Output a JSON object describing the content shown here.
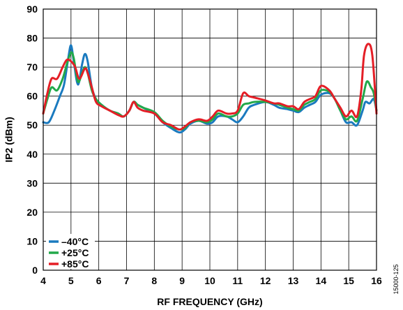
{
  "chart_data": {
    "type": "line",
    "xlabel": "RF FREQUENCY (GHz)",
    "ylabel": "IP2 (dBm)",
    "xlim": [
      4,
      16
    ],
    "ylim": [
      0,
      90
    ],
    "xticks": [
      4,
      5,
      6,
      7,
      8,
      9,
      10,
      11,
      12,
      13,
      14,
      15,
      16
    ],
    "yticks": [
      0,
      10,
      20,
      30,
      40,
      50,
      60,
      70,
      80,
      90
    ],
    "grid": true,
    "legend_position": "bottom-left",
    "figure_id": "15000-125",
    "series": [
      {
        "name": "–40°C",
        "color": "#1a7abf",
        "points": [
          [
            4.0,
            51
          ],
          [
            4.2,
            51
          ],
          [
            4.4,
            55
          ],
          [
            4.6,
            60
          ],
          [
            4.75,
            64
          ],
          [
            4.9,
            73
          ],
          [
            5.0,
            77.5
          ],
          [
            5.1,
            72
          ],
          [
            5.25,
            64
          ],
          [
            5.4,
            71
          ],
          [
            5.5,
            74.5
          ],
          [
            5.6,
            72
          ],
          [
            5.75,
            63
          ],
          [
            5.9,
            59
          ],
          [
            6.1,
            57
          ],
          [
            6.4,
            55
          ],
          [
            6.7,
            54
          ],
          [
            6.9,
            53
          ],
          [
            7.1,
            55
          ],
          [
            7.25,
            58
          ],
          [
            7.4,
            57
          ],
          [
            7.6,
            56
          ],
          [
            8.0,
            54
          ],
          [
            8.3,
            51
          ],
          [
            8.6,
            49
          ],
          [
            8.9,
            47.5
          ],
          [
            9.1,
            48.5
          ],
          [
            9.3,
            50.5
          ],
          [
            9.6,
            51.5
          ],
          [
            9.9,
            50.5
          ],
          [
            10.1,
            51
          ],
          [
            10.3,
            53
          ],
          [
            10.6,
            53
          ],
          [
            10.8,
            52
          ],
          [
            11.0,
            51
          ],
          [
            11.2,
            53
          ],
          [
            11.4,
            56
          ],
          [
            11.6,
            57
          ],
          [
            12.0,
            58
          ],
          [
            12.3,
            57
          ],
          [
            12.5,
            56
          ],
          [
            12.8,
            55.5
          ],
          [
            13.0,
            55
          ],
          [
            13.2,
            54.5
          ],
          [
            13.4,
            56
          ],
          [
            13.6,
            57
          ],
          [
            13.8,
            58
          ],
          [
            14.0,
            60.5
          ],
          [
            14.3,
            61
          ],
          [
            14.5,
            59
          ],
          [
            14.7,
            55
          ],
          [
            14.9,
            51
          ],
          [
            15.1,
            51
          ],
          [
            15.3,
            50
          ],
          [
            15.5,
            55
          ],
          [
            15.6,
            58
          ],
          [
            15.75,
            57.5
          ],
          [
            15.9,
            59
          ],
          [
            16.0,
            55
          ]
        ]
      },
      {
        "name": "+25°C",
        "color": "#22a84a",
        "points": [
          [
            4.0,
            54
          ],
          [
            4.15,
            59
          ],
          [
            4.3,
            63
          ],
          [
            4.5,
            62
          ],
          [
            4.7,
            66
          ],
          [
            4.85,
            71
          ],
          [
            5.0,
            75
          ],
          [
            5.1,
            73
          ],
          [
            5.25,
            65
          ],
          [
            5.4,
            68
          ],
          [
            5.5,
            70
          ],
          [
            5.6,
            68
          ],
          [
            5.75,
            62
          ],
          [
            5.9,
            59
          ],
          [
            6.1,
            57
          ],
          [
            6.4,
            55
          ],
          [
            6.7,
            54
          ],
          [
            6.9,
            53
          ],
          [
            7.1,
            55
          ],
          [
            7.25,
            58
          ],
          [
            7.4,
            57
          ],
          [
            7.6,
            56
          ],
          [
            8.0,
            54.5
          ],
          [
            8.3,
            51.5
          ],
          [
            8.6,
            49.5
          ],
          [
            8.9,
            48.5
          ],
          [
            9.1,
            49
          ],
          [
            9.3,
            51
          ],
          [
            9.6,
            51.5
          ],
          [
            9.9,
            51
          ],
          [
            10.1,
            52
          ],
          [
            10.3,
            54
          ],
          [
            10.6,
            53
          ],
          [
            10.8,
            53
          ],
          [
            11.0,
            54
          ],
          [
            11.2,
            57
          ],
          [
            11.4,
            57.5
          ],
          [
            11.6,
            58
          ],
          [
            12.0,
            58
          ],
          [
            12.3,
            57.5
          ],
          [
            12.5,
            57
          ],
          [
            12.8,
            56
          ],
          [
            13.0,
            55.5
          ],
          [
            13.2,
            55
          ],
          [
            13.4,
            57
          ],
          [
            13.6,
            58
          ],
          [
            13.8,
            59
          ],
          [
            14.0,
            62
          ],
          [
            14.3,
            61.5
          ],
          [
            14.5,
            59
          ],
          [
            14.7,
            55
          ],
          [
            14.9,
            52
          ],
          [
            15.1,
            53
          ],
          [
            15.3,
            51.5
          ],
          [
            15.5,
            59
          ],
          [
            15.65,
            65
          ],
          [
            15.8,
            63
          ],
          [
            15.9,
            61
          ],
          [
            16.0,
            55
          ]
        ]
      },
      {
        "name": "+85°C",
        "color": "#e41e26",
        "points": [
          [
            4.0,
            54
          ],
          [
            4.15,
            61
          ],
          [
            4.3,
            66
          ],
          [
            4.5,
            66
          ],
          [
            4.7,
            70
          ],
          [
            4.85,
            72.5
          ],
          [
            5.0,
            72
          ],
          [
            5.15,
            70
          ],
          [
            5.3,
            66
          ],
          [
            5.5,
            69.5
          ],
          [
            5.6,
            68
          ],
          [
            5.75,
            63
          ],
          [
            5.9,
            58
          ],
          [
            6.1,
            56.5
          ],
          [
            6.4,
            55
          ],
          [
            6.7,
            53.5
          ],
          [
            6.9,
            53
          ],
          [
            7.1,
            55
          ],
          [
            7.25,
            58
          ],
          [
            7.4,
            56
          ],
          [
            7.6,
            55
          ],
          [
            8.0,
            54
          ],
          [
            8.3,
            51
          ],
          [
            8.6,
            50
          ],
          [
            8.9,
            48.5
          ],
          [
            9.1,
            49.5
          ],
          [
            9.3,
            51
          ],
          [
            9.6,
            52
          ],
          [
            9.9,
            51.5
          ],
          [
            10.1,
            53
          ],
          [
            10.3,
            55
          ],
          [
            10.6,
            54
          ],
          [
            10.8,
            54
          ],
          [
            11.0,
            55
          ],
          [
            11.2,
            61
          ],
          [
            11.4,
            60
          ],
          [
            11.6,
            59.5
          ],
          [
            12.0,
            58.5
          ],
          [
            12.3,
            57.5
          ],
          [
            12.5,
            57.5
          ],
          [
            12.8,
            56.5
          ],
          [
            13.0,
            56.5
          ],
          [
            13.2,
            55.5
          ],
          [
            13.4,
            58
          ],
          [
            13.6,
            59
          ],
          [
            13.8,
            60
          ],
          [
            14.0,
            63.5
          ],
          [
            14.3,
            62
          ],
          [
            14.5,
            59
          ],
          [
            14.7,
            56
          ],
          [
            14.9,
            53
          ],
          [
            15.1,
            55
          ],
          [
            15.3,
            53
          ],
          [
            15.45,
            62
          ],
          [
            15.55,
            74
          ],
          [
            15.7,
            78
          ],
          [
            15.85,
            74
          ],
          [
            16.0,
            54
          ]
        ]
      }
    ]
  }
}
